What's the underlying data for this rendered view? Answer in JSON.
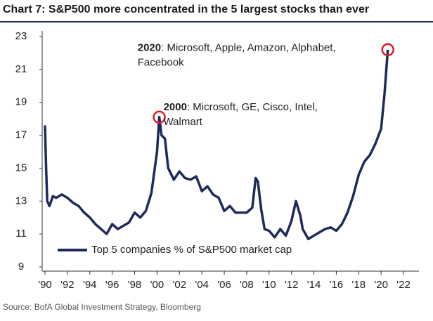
{
  "chart_data": {
    "type": "line",
    "title": "Chart 7: S&P500 more concentrated in the 5 largest stocks than ever",
    "source": "Source: BofA Global Investment Strategy, Bloomberg",
    "x": [
      1990.0,
      1990.1,
      1990.2,
      1990.4,
      1990.7,
      1991,
      1991.5,
      1992,
      1992.5,
      1993,
      1993.5,
      1994,
      1994.5,
      1995,
      1995.5,
      1996,
      1996.5,
      1997,
      1997.5,
      1998,
      1998.5,
      1999,
      1999.5,
      2000,
      2000.2,
      2000.4,
      2000.7,
      2001,
      2001.5,
      2002,
      2002.5,
      2003,
      2003.5,
      2004,
      2004.5,
      2005,
      2005.5,
      2006,
      2006.5,
      2007,
      2007.5,
      2008,
      2008.5,
      2008.8,
      2009,
      2009.3,
      2009.6,
      2010,
      2010.5,
      2011,
      2011.5,
      2012,
      2012.4,
      2012.8,
      2013,
      2013.5,
      2014,
      2014.5,
      2015,
      2015.5,
      2016,
      2016.5,
      2017,
      2017.5,
      2018,
      2018.5,
      2019,
      2019.5,
      2020,
      2020.3,
      2020.6
    ],
    "series": [
      {
        "name": "Top 5 companies % of S&P500 market cap",
        "color": "#1f2a5a",
        "values": [
          17.6,
          15,
          13,
          12.7,
          13.3,
          13.2,
          13.4,
          13.2,
          12.9,
          12.7,
          12.3,
          12.0,
          11.6,
          11.3,
          11.0,
          11.6,
          11.3,
          11.5,
          11.7,
          12.3,
          12.0,
          12.4,
          13.5,
          16,
          18.1,
          17.0,
          16.8,
          15.0,
          14.3,
          14.8,
          14.4,
          14.3,
          14.5,
          13.6,
          13.9,
          13.4,
          13.2,
          12.4,
          12.7,
          12.3,
          12.3,
          12.3,
          12.6,
          14.4,
          14.2,
          12.5,
          11.3,
          11.2,
          10.8,
          11.3,
          10.9,
          11.8,
          13.0,
          12.1,
          11.3,
          10.7,
          10.9,
          11.1,
          11.3,
          11.4,
          11.2,
          11.6,
          12.3,
          13.3,
          14.6,
          15.4,
          15.8,
          16.5,
          17.4,
          19.5,
          22.2
        ]
      }
    ],
    "annotations": [
      {
        "bold": "2000",
        "lines": [
          ": Microsoft, GE, Cisco, Intel,",
          "Walmart"
        ],
        "x": 2000.2,
        "y": 18.1
      },
      {
        "bold": "2020",
        "lines": [
          ": Microsoft, Apple, Amazon, Alphabet,",
          "Facebook"
        ],
        "x": 2020.6,
        "y": 22.2
      }
    ],
    "xlim": [
      1990,
      2023
    ],
    "ylim": [
      9,
      23
    ],
    "yticks": [
      9,
      11,
      13,
      15,
      17,
      19,
      21,
      23
    ],
    "xticks": [
      {
        "value": 1990,
        "label": "'90"
      },
      {
        "value": 1992,
        "label": "'92"
      },
      {
        "value": 1994,
        "label": "'94"
      },
      {
        "value": 1996,
        "label": "'96"
      },
      {
        "value": 1998,
        "label": "'98"
      },
      {
        "value": 2000,
        "label": "'00"
      },
      {
        "value": 2002,
        "label": "'02"
      },
      {
        "value": 2004,
        "label": "'04"
      },
      {
        "value": 2006,
        "label": "'06"
      },
      {
        "value": 2008,
        "label": "'08"
      },
      {
        "value": 2010,
        "label": "'10"
      },
      {
        "value": 2012,
        "label": "'12"
      },
      {
        "value": 2014,
        "label": "'14"
      },
      {
        "value": 2016,
        "label": "'16"
      },
      {
        "value": 2018,
        "label": "'18"
      },
      {
        "value": 2020,
        "label": "'20"
      },
      {
        "value": 2022,
        "label": "'22"
      }
    ],
    "legend": "lower left"
  }
}
